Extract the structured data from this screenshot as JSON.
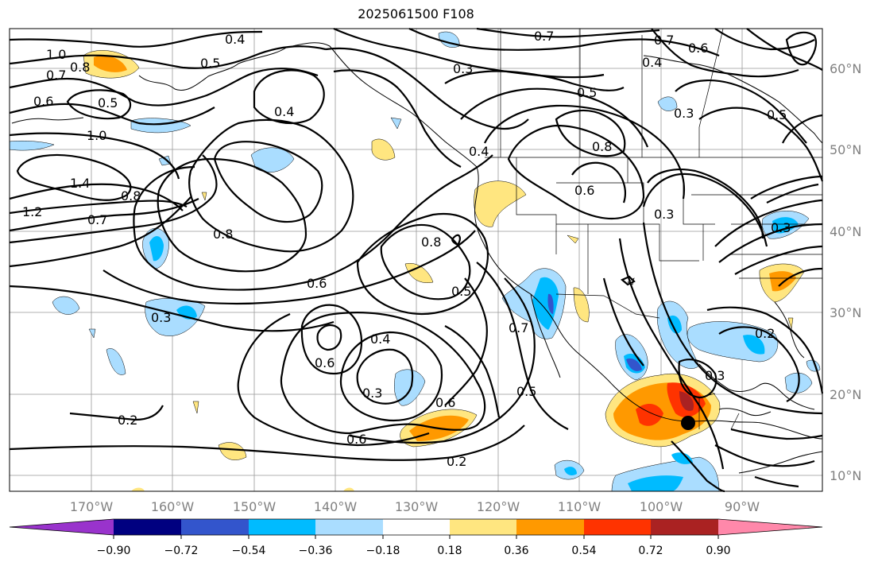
{
  "title": "2025061500 F108",
  "lon_labels": [
    "170°W",
    "160°W",
    "150°W",
    "140°W",
    "130°W",
    "120°W",
    "110°W",
    "100°W",
    "90°W"
  ],
  "lat_labels": [
    "60°N",
    "50°N",
    "40°N",
    "30°N",
    "20°N",
    "10°N"
  ],
  "contour_labels": [
    "1.0",
    "0.8",
    "0.7",
    "0.6",
    "0.5",
    "0.4",
    "0.5",
    "0.4",
    "0.3",
    "0.7",
    "0.7",
    "0.6",
    "0.4",
    "0.5",
    "1.0",
    "1.4",
    "1.2",
    "0.8",
    "0.7",
    "0.8",
    "0.6",
    "0.8",
    "0.5",
    "0.4",
    "0.6",
    "0.3",
    "0.2",
    "0.6",
    "0.6",
    "0.5",
    "0.3",
    "0.4",
    "0.3",
    "0.2",
    "0.3",
    "0.2",
    "0.8",
    "0.6",
    "0.7",
    "0.3",
    "0.5",
    "0.3"
  ],
  "colorbar": {
    "colors": [
      "#9933cc",
      "#000080",
      "#3355cc",
      "#00bbff",
      "#aaddff",
      "#ffffff",
      "#ffe680",
      "#ff9900",
      "#ff3300",
      "#aa2222",
      "#ff88aa"
    ],
    "ticks": [
      "−0.90",
      "−0.72",
      "−0.54",
      "−0.36",
      "−0.18",
      "0.18",
      "0.36",
      "0.54",
      "0.72",
      "0.90"
    ]
  },
  "marker": {
    "label": "",
    "color": "#000000"
  }
}
